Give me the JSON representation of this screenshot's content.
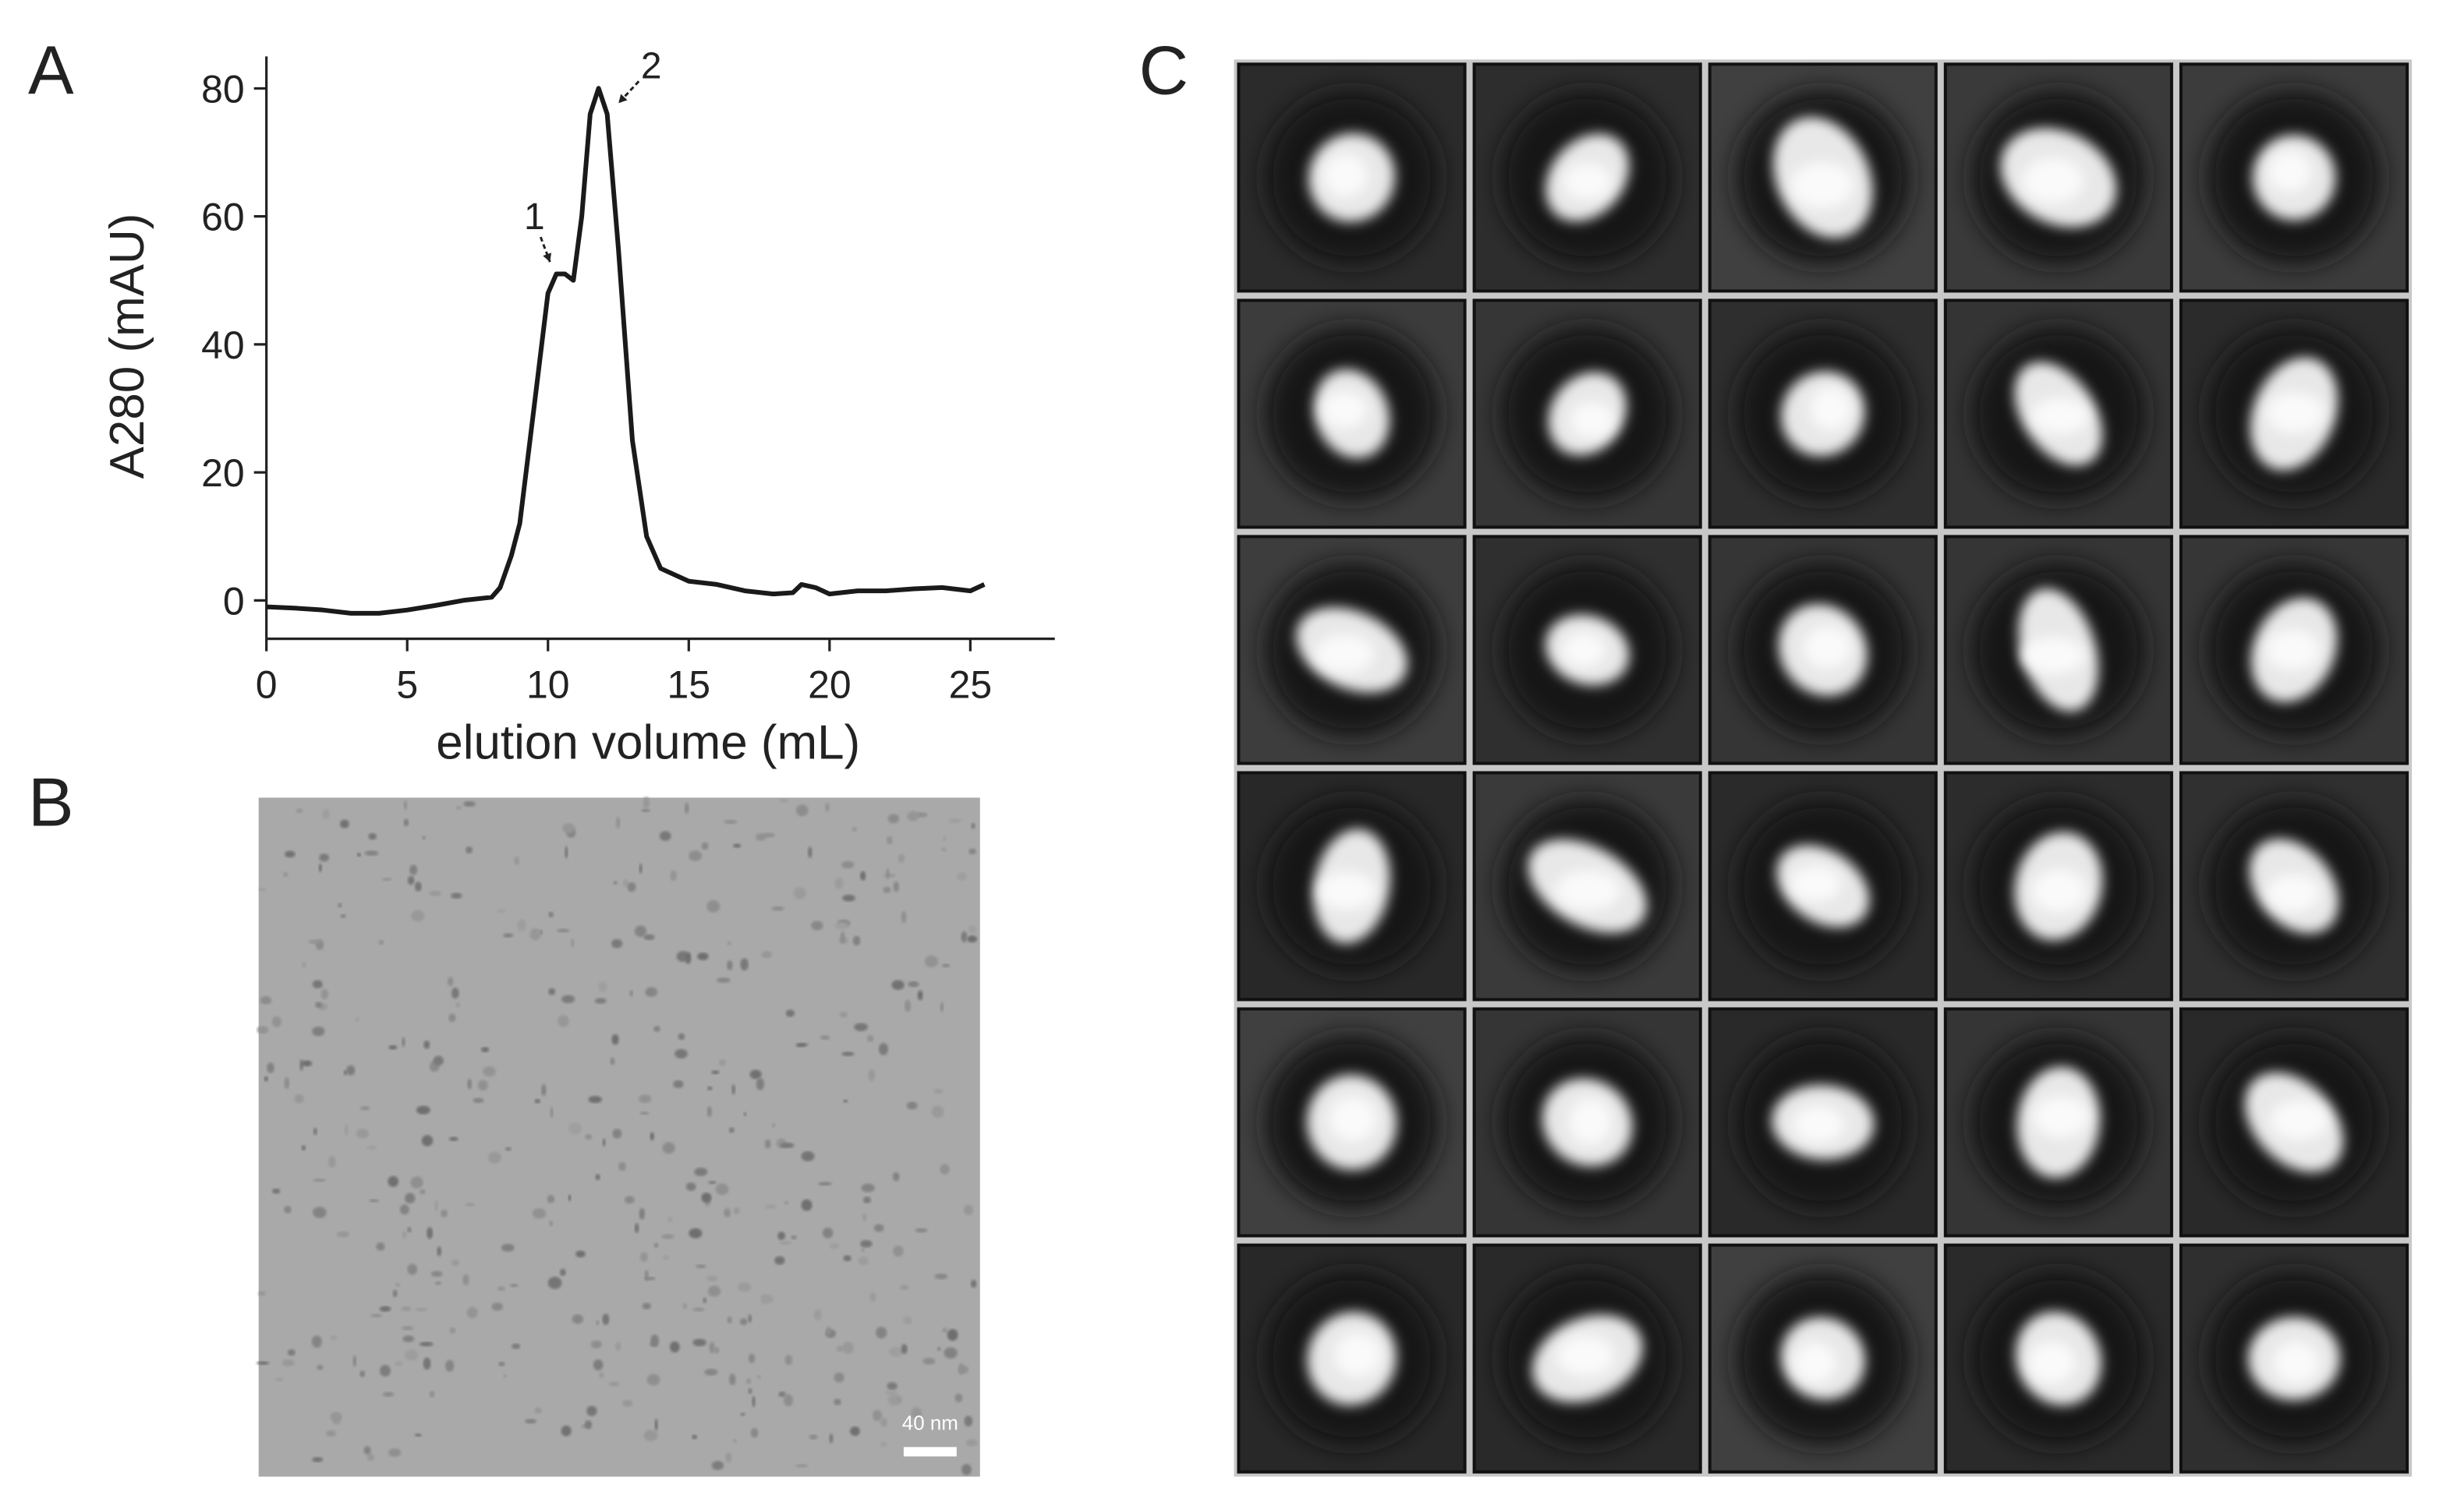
{
  "panel_labels": [
    "A",
    "B",
    "C"
  ],
  "chart_data": {
    "type": "line",
    "x_label": "elution volume (mL)",
    "y_label": "A280 (mAU)",
    "x": [
      0,
      1,
      2,
      3,
      4,
      5,
      6,
      7,
      8,
      8.3,
      8.7,
      9,
      9.5,
      10,
      10.3,
      10.6,
      10.9,
      11.2,
      11.5,
      11.8,
      12.1,
      12.5,
      13,
      13.5,
      14,
      15,
      16,
      17,
      18,
      18.7,
      19,
      19.5,
      20,
      21,
      22,
      23,
      24,
      25,
      25.5
    ],
    "values": [
      -1,
      -1.2,
      -1.5,
      -2,
      -2,
      -1.5,
      -0.8,
      0,
      0.5,
      2,
      7,
      12,
      30,
      48,
      51,
      51,
      50,
      60,
      76,
      80,
      76,
      55,
      25,
      10,
      5,
      3,
      2.5,
      1.5,
      1,
      1.2,
      2.5,
      2,
      1,
      1.5,
      1.5,
      1.8,
      2,
      1.5,
      2.5
    ],
    "color": "#1a1a1a",
    "xlim": [
      0,
      28
    ],
    "ylim": [
      -6,
      85
    ],
    "xticks": [
      0,
      5,
      10,
      15,
      20,
      25
    ],
    "yticks": [
      0,
      20,
      40,
      60,
      80
    ],
    "annotations": [
      "1",
      "2"
    ]
  },
  "micrograph": {
    "scale_bar_label": "40 nm"
  }
}
